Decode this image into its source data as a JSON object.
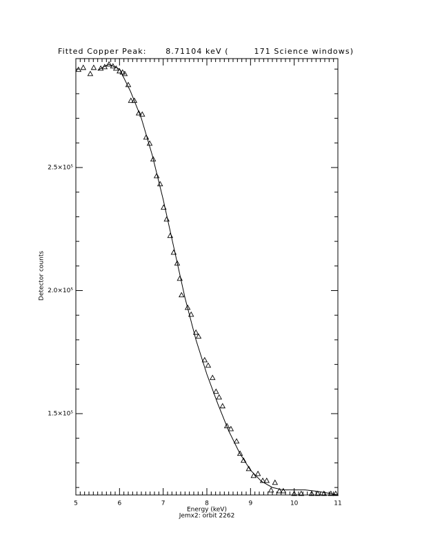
{
  "chart_data": {
    "type": "scatter",
    "title": "Fitted Copper Peak:      8.71104 keV (        171 Science windows)",
    "x_label": "Energy (keV)",
    "subtitle": "Jemx2: orbit 2262",
    "y_label": "Detector counts",
    "xlim": [
      5,
      11
    ],
    "xticks": [
      5,
      6,
      7,
      8,
      9,
      10,
      11
    ],
    "x_minor": 10,
    "ylim": [
      116950,
      294260
    ],
    "yticks": [
      {
        "value": 150000,
        "label": "1.5×10⁵"
      },
      {
        "value": 200000,
        "label": "2.0×10⁵"
      },
      {
        "value": 250000,
        "label": "2.5×10⁵"
      }
    ],
    "y_minor": 5,
    "color": "#000000",
    "marker": "triangle",
    "points": {
      "x": [
        5.06,
        5.17,
        5.33,
        5.41,
        5.57,
        5.66,
        5.76,
        5.85,
        5.92,
        6.0,
        6.07,
        6.12,
        6.2,
        6.26,
        6.34,
        6.44,
        6.52,
        6.61,
        6.69,
        6.77,
        6.85,
        6.93,
        7.01,
        7.08,
        7.16,
        7.24,
        7.32,
        7.38,
        7.42,
        7.56,
        7.64,
        7.75,
        7.81,
        7.95,
        8.03,
        8.13,
        8.21,
        8.28,
        8.36,
        8.46,
        8.55,
        8.68,
        8.76,
        8.84,
        8.96,
        9.07,
        9.17,
        9.28,
        9.37,
        9.47,
        9.56,
        9.66,
        9.75,
        10.0,
        10.16,
        10.4,
        10.54,
        10.68,
        10.84,
        10.95
      ],
      "y": [
        289800,
        290600,
        288100,
        290600,
        290300,
        290900,
        292000,
        291200,
        290300,
        289200,
        288700,
        288100,
        283600,
        277200,
        277200,
        272100,
        271600,
        262300,
        259800,
        253400,
        246600,
        243300,
        233800,
        229000,
        222300,
        215500,
        211100,
        204900,
        198200,
        193100,
        190300,
        183000,
        181400,
        171800,
        169600,
        164600,
        159000,
        156700,
        153100,
        145000,
        143800,
        138800,
        133800,
        131000,
        127600,
        124800,
        125600,
        122800,
        122800,
        118900,
        122000,
        118600,
        118600,
        117500,
        117500,
        117500,
        117500,
        117500,
        117500,
        117500
      ]
    },
    "fit": {
      "x": [
        5.5,
        5.75,
        6.0,
        6.25,
        6.5,
        6.75,
        7.0,
        7.25,
        7.5,
        7.75,
        8.0,
        8.25,
        8.5,
        8.75,
        9.0,
        9.25,
        9.5,
        9.75,
        10.0,
        10.25,
        10.5,
        10.75,
        11.0
      ],
      "y": [
        289500,
        292000,
        290000,
        281000,
        270000,
        255000,
        237000,
        217000,
        197000,
        180000,
        166000,
        154000,
        143000,
        134000,
        127000,
        122500,
        120000,
        119000,
        119000,
        119000,
        118500,
        117800,
        117000
      ]
    }
  }
}
